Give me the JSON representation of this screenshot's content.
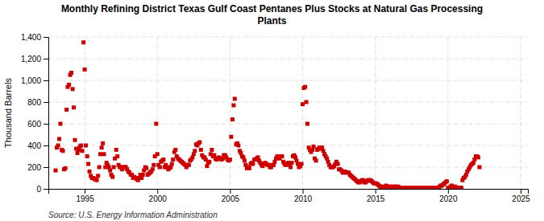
{
  "chart_data": {
    "type": "scatter",
    "title": "Monthly Refining District Texas Gulf Coast Pentanes Plus Stocks at Natural Gas Processing\nPlants",
    "ylabel": "Thousand Barrels",
    "source": "Source: U.S. Energy Information Administration",
    "color": "#cc0000",
    "marker": "square",
    "grid": true,
    "xlim": [
      1992.5,
      2025.5
    ],
    "ylim": [
      0,
      1400
    ],
    "xticks": [
      1995,
      2000,
      2005,
      2010,
      2015,
      2020,
      2025
    ],
    "yticks": [
      0,
      200,
      400,
      600,
      800,
      {
        "value": 1000,
        "label": "1,000"
      },
      {
        "value": 1200,
        "label": "1,200"
      },
      {
        "value": 1400,
        "label": "1,400"
      }
    ],
    "x": [
      1993.0,
      1993.08,
      1993.17,
      1993.25,
      1993.33,
      1993.42,
      1993.5,
      1993.58,
      1993.67,
      1993.75,
      1993.83,
      1993.92,
      1994.0,
      1994.08,
      1994.17,
      1994.25,
      1994.33,
      1994.42,
      1994.5,
      1994.58,
      1994.67,
      1994.75,
      1994.83,
      1994.92,
      1995.0,
      1995.08,
      1995.17,
      1995.25,
      1995.33,
      1995.42,
      1995.5,
      1995.58,
      1995.67,
      1995.75,
      1995.83,
      1995.92,
      1996.0,
      1996.08,
      1996.17,
      1996.25,
      1996.33,
      1996.42,
      1996.5,
      1996.58,
      1996.67,
      1996.75,
      1996.83,
      1996.92,
      1997.0,
      1997.08,
      1997.17,
      1997.25,
      1997.33,
      1997.42,
      1997.5,
      1997.58,
      1997.67,
      1997.75,
      1997.83,
      1997.92,
      1998.0,
      1998.08,
      1998.17,
      1998.25,
      1998.33,
      1998.42,
      1998.5,
      1998.58,
      1998.67,
      1998.75,
      1998.83,
      1998.92,
      1999.0,
      1999.08,
      1999.17,
      1999.25,
      1999.33,
      1999.42,
      1999.5,
      1999.58,
      1999.67,
      1999.75,
      1999.83,
      1999.92,
      2000.0,
      2000.08,
      2000.17,
      2000.25,
      2000.33,
      2000.42,
      2000.5,
      2000.58,
      2000.67,
      2000.75,
      2000.83,
      2000.92,
      2001.0,
      2001.08,
      2001.17,
      2001.25,
      2001.33,
      2001.42,
      2001.5,
      2001.58,
      2001.67,
      2001.75,
      2001.83,
      2001.92,
      2002.0,
      2002.08,
      2002.17,
      2002.25,
      2002.33,
      2002.42,
      2002.5,
      2002.58,
      2002.67,
      2002.75,
      2002.83,
      2002.92,
      2003.0,
      2003.08,
      2003.17,
      2003.25,
      2003.33,
      2003.42,
      2003.5,
      2003.58,
      2003.67,
      2003.75,
      2003.83,
      2003.92,
      2004.0,
      2004.08,
      2004.17,
      2004.25,
      2004.33,
      2004.42,
      2004.5,
      2004.58,
      2004.67,
      2004.75,
      2004.83,
      2004.92,
      2005.0,
      2005.08,
      2005.17,
      2005.25,
      2005.33,
      2005.42,
      2005.5,
      2005.58,
      2005.67,
      2005.75,
      2005.83,
      2005.92,
      2006.0,
      2006.08,
      2006.17,
      2006.25,
      2006.33,
      2006.42,
      2006.5,
      2006.58,
      2006.67,
      2006.75,
      2006.83,
      2006.92,
      2007.0,
      2007.08,
      2007.17,
      2007.25,
      2007.33,
      2007.42,
      2007.5,
      2007.58,
      2007.67,
      2007.75,
      2007.83,
      2007.92,
      2008.0,
      2008.08,
      2008.17,
      2008.25,
      2008.33,
      2008.42,
      2008.5,
      2008.58,
      2008.67,
      2008.75,
      2008.83,
      2008.92,
      2009.0,
      2009.08,
      2009.17,
      2009.25,
      2009.33,
      2009.42,
      2009.5,
      2009.58,
      2009.67,
      2009.75,
      2009.83,
      2009.92,
      2010.0,
      2010.08,
      2010.17,
      2010.25,
      2010.33,
      2010.42,
      2010.5,
      2010.58,
      2010.67,
      2010.75,
      2010.83,
      2010.92,
      2011.0,
      2011.08,
      2011.17,
      2011.25,
      2011.33,
      2011.42,
      2011.5,
      2011.58,
      2011.67,
      2011.75,
      2011.83,
      2011.92,
      2012.0,
      2012.08,
      2012.17,
      2012.25,
      2012.33,
      2012.42,
      2012.5,
      2012.58,
      2012.67,
      2012.75,
      2012.83,
      2012.92,
      2013.0,
      2013.08,
      2013.17,
      2013.25,
      2013.33,
      2013.42,
      2013.5,
      2013.58,
      2013.67,
      2013.75,
      2013.83,
      2013.92,
      2014.0,
      2014.08,
      2014.17,
      2014.25,
      2014.33,
      2014.42,
      2014.5,
      2014.58,
      2014.67,
      2014.75,
      2014.83,
      2014.92,
      2015.0,
      2015.08,
      2015.17,
      2015.25,
      2015.33,
      2015.42,
      2015.5,
      2015.58,
      2015.67,
      2015.75,
      2015.83,
      2015.92,
      2016.0,
      2016.08,
      2016.17,
      2016.25,
      2016.33,
      2016.42,
      2016.5,
      2016.58,
      2016.67,
      2016.75,
      2016.83,
      2016.92,
      2017.0,
      2017.08,
      2017.17,
      2017.25,
      2017.33,
      2017.42,
      2017.5,
      2017.58,
      2017.67,
      2017.75,
      2017.83,
      2017.92,
      2018.0,
      2018.08,
      2018.17,
      2018.25,
      2018.33,
      2018.42,
      2018.5,
      2018.58,
      2018.67,
      2018.75,
      2018.83,
      2018.92,
      2019.0,
      2019.08,
      2019.17,
      2019.25,
      2019.33,
      2019.42,
      2019.5,
      2019.58,
      2019.67,
      2019.75,
      2019.83,
      2019.92,
      2020.0,
      2020.08,
      2020.17,
      2020.25,
      2020.33,
      2020.42,
      2020.5,
      2020.58,
      2020.67,
      2020.75,
      2020.83,
      2020.92,
      2021.0,
      2021.08,
      2021.17,
      2021.25,
      2021.33,
      2021.42,
      2021.5,
      2021.58,
      2021.67,
      2021.75,
      2021.83,
      2021.92,
      2022.0,
      2022.08,
      2022.17
    ],
    "values": [
      170,
      380,
      400,
      460,
      600,
      360,
      350,
      180,
      190,
      730,
      940,
      960,
      1050,
      1070,
      920,
      750,
      450,
      370,
      330,
      360,
      390,
      400,
      350,
      1350,
      1100,
      400,
      300,
      230,
      160,
      120,
      100,
      100,
      90,
      90,
      80,
      120,
      200,
      320,
      380,
      420,
      320,
      200,
      240,
      220,
      200,
      170,
      130,
      110,
      200,
      280,
      360,
      300,
      220,
      200,
      200,
      180,
      200,
      200,
      200,
      180,
      160,
      150,
      130,
      130,
      100,
      110,
      100,
      90,
      80,
      100,
      130,
      100,
      130,
      170,
      200,
      190,
      130,
      140,
      150,
      160,
      180,
      220,
      300,
      600,
      320,
      220,
      200,
      250,
      260,
      270,
      200,
      220,
      200,
      180,
      190,
      200,
      230,
      270,
      340,
      360,
      300,
      280,
      270,
      260,
      250,
      240,
      230,
      220,
      200,
      220,
      220,
      260,
      270,
      290,
      320,
      350,
      410,
      400,
      420,
      430,
      360,
      310,
      290,
      290,
      270,
      210,
      240,
      250,
      320,
      360,
      300,
      310,
      280,
      270,
      280,
      290,
      280,
      270,
      280,
      310,
      310,
      290,
      270,
      260,
      270,
      480,
      640,
      770,
      830,
      410,
      420,
      400,
      350,
      330,
      300,
      290,
      260,
      220,
      190,
      200,
      190,
      230,
      240,
      230,
      270,
      270,
      280,
      290,
      260,
      240,
      220,
      210,
      230,
      240,
      230,
      220,
      220,
      200,
      200,
      220,
      220,
      250,
      280,
      300,
      300,
      280,
      300,
      300,
      250,
      230,
      220,
      230,
      240,
      220,
      200,
      240,
      300,
      310,
      290,
      260,
      230,
      200,
      210,
      230,
      780,
      930,
      940,
      800,
      600,
      380,
      360,
      340,
      360,
      390,
      280,
      260,
      360,
      370,
      380,
      370,
      380,
      350,
      320,
      300,
      280,
      250,
      220,
      200,
      200,
      200,
      210,
      230,
      250,
      230,
      180,
      180,
      170,
      150,
      150,
      160,
      150,
      150,
      150,
      130,
      120,
      110,
      100,
      90,
      80,
      70,
      60,
      60,
      70,
      80,
      80,
      60,
      60,
      70,
      80,
      80,
      80,
      70,
      60,
      50,
      50,
      50,
      40,
      30,
      20,
      20,
      20,
      20,
      20,
      30,
      20,
      20,
      20,
      20,
      20,
      20,
      20,
      20,
      20,
      20,
      10,
      10,
      10,
      10,
      10,
      10,
      10,
      10,
      10,
      10,
      10,
      10,
      10,
      10,
      10,
      10,
      10,
      10,
      10,
      10,
      10,
      10,
      10,
      10,
      10,
      10,
      10,
      10,
      10,
      10,
      10,
      10,
      10,
      20,
      30,
      30,
      40,
      50,
      60,
      70,
      10,
      10,
      20,
      30,
      20,
      20,
      20,
      10,
      10,
      10,
      10,
      10,
      80,
      100,
      110,
      130,
      160,
      180,
      200,
      220,
      230,
      240,
      270,
      300,
      300,
      290,
      200
    ]
  }
}
